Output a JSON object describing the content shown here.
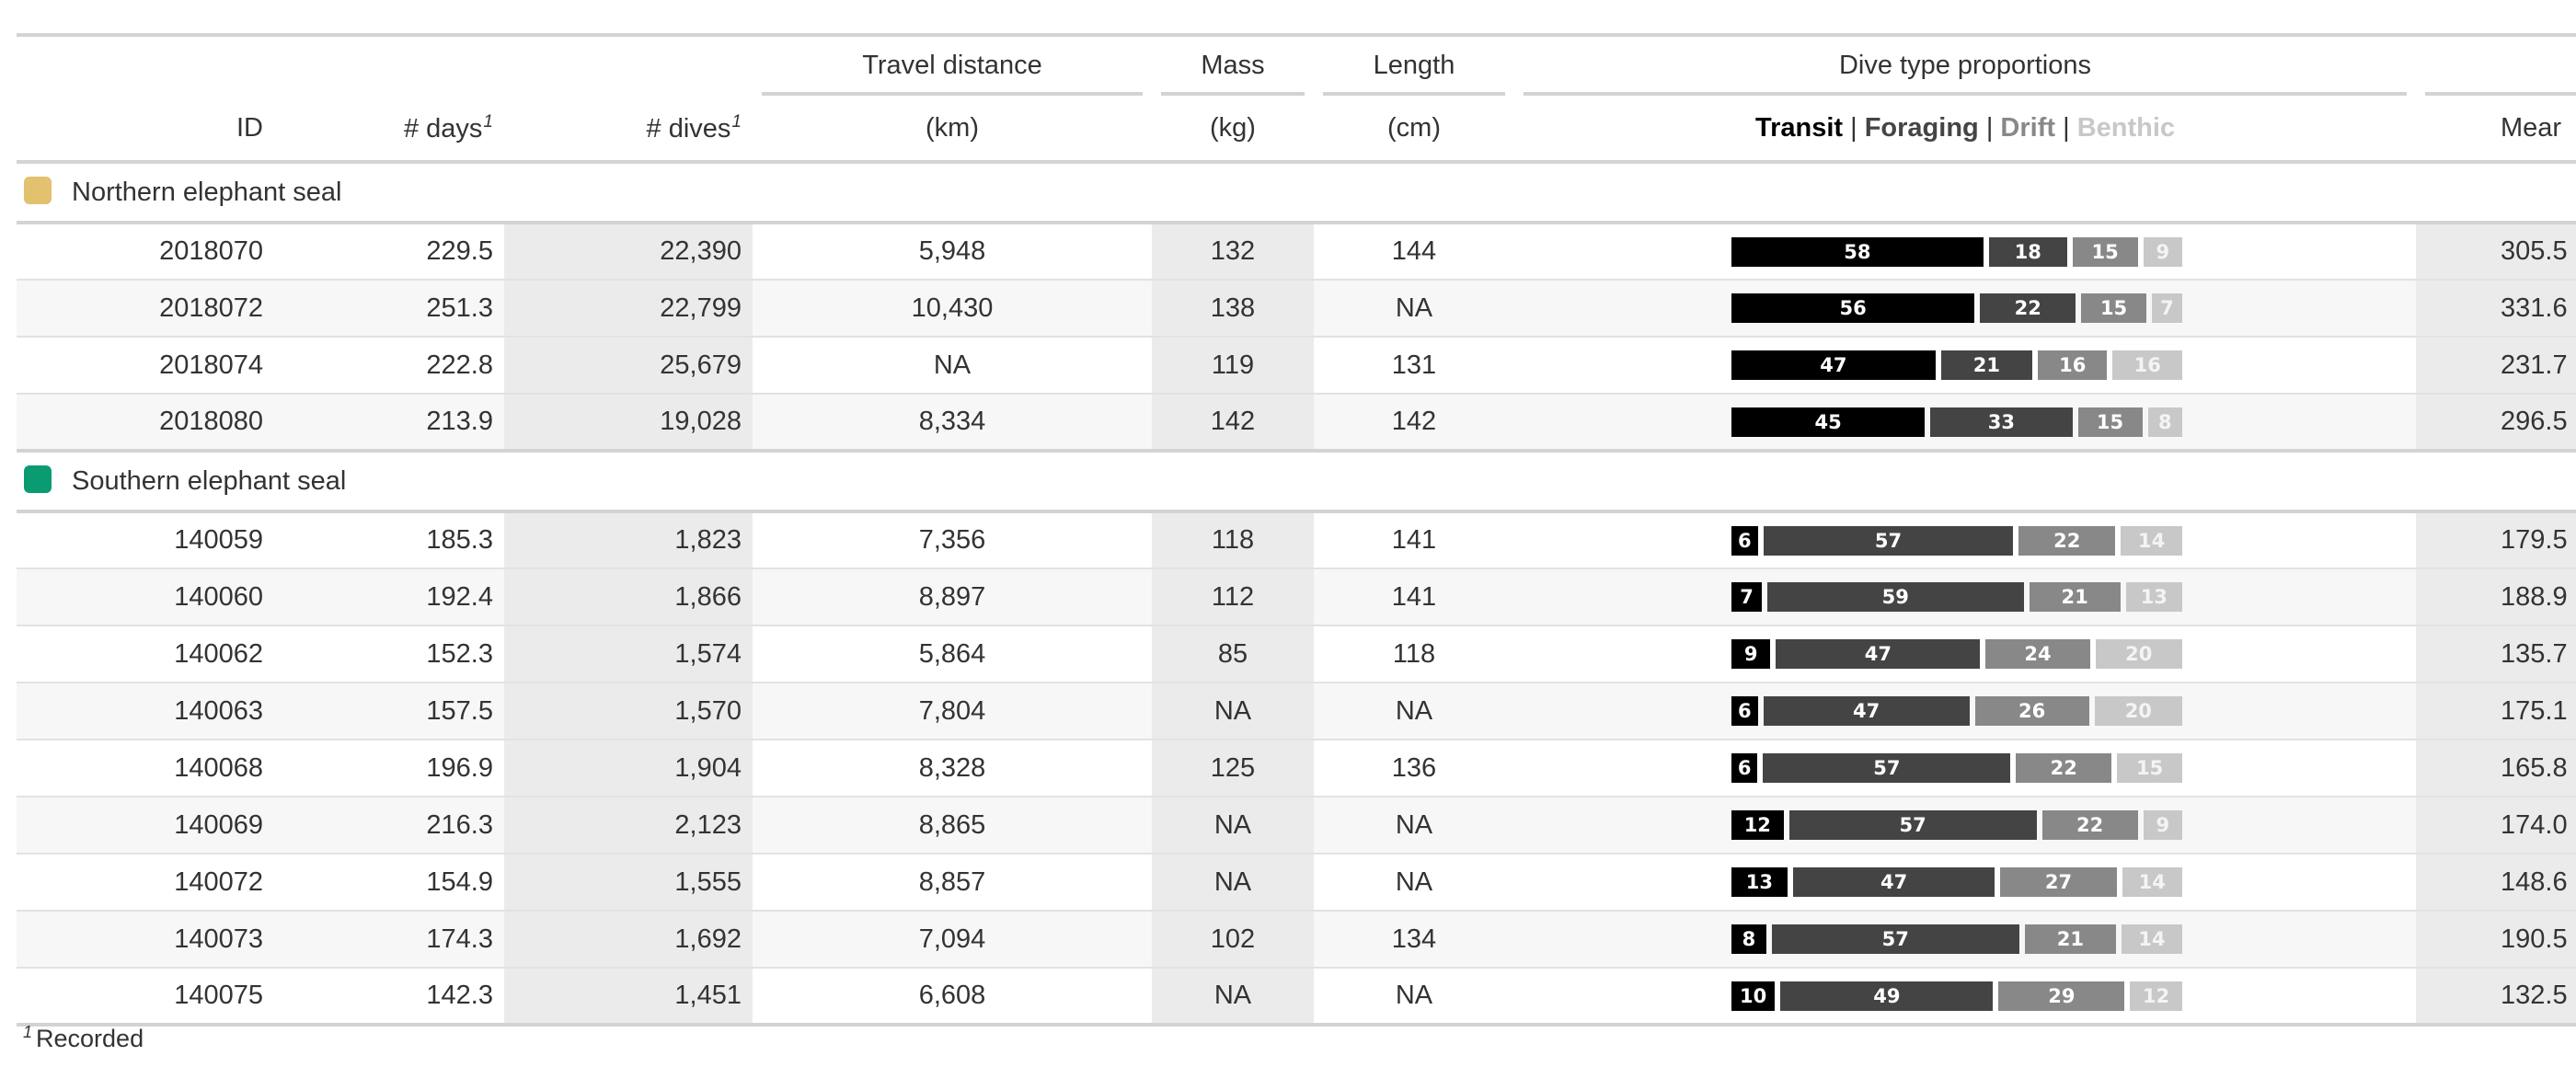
{
  "columns": {
    "id": "ID",
    "days": "# days",
    "dives": "# dives",
    "travel_spanner": "Travel distance",
    "travel_unit": "(km)",
    "mass_spanner": "Mass",
    "mass_unit": "(kg)",
    "length_spanner": "Length",
    "length_unit": "(cm)",
    "dive_spanner": "Dive type proportions",
    "mean_partial": "Mear",
    "footnote_mark": "1"
  },
  "legend": {
    "transit": "Transit",
    "foraging": "Foraging",
    "drift": "Drift",
    "benthic": "Benthic",
    "sep": " | "
  },
  "colors": {
    "transit": "#000000",
    "foraging": "#444444",
    "drift": "#888888",
    "benthic": "#c8c8c8",
    "northern": "#E2C16F",
    "southern": "#0A9B73"
  },
  "groups": [
    {
      "name": "Northern elephant seal",
      "swatch_color": "#E2C16F",
      "rows": [
        {
          "id": "2018070",
          "days": "229.5",
          "dives": "22,390",
          "travel": "5,948",
          "mass": "132",
          "length": "144",
          "props": [
            58,
            18,
            15,
            9
          ],
          "mean": "305.5"
        },
        {
          "id": "2018072",
          "days": "251.3",
          "dives": "22,799",
          "travel": "10,430",
          "mass": "138",
          "length": "NA",
          "props": [
            56,
            22,
            15,
            7
          ],
          "mean": "331.6"
        },
        {
          "id": "2018074",
          "days": "222.8",
          "dives": "25,679",
          "travel": "NA",
          "mass": "119",
          "length": "131",
          "props": [
            47,
            21,
            16,
            16
          ],
          "mean": "231.7"
        },
        {
          "id": "2018080",
          "days": "213.9",
          "dives": "19,028",
          "travel": "8,334",
          "mass": "142",
          "length": "142",
          "props": [
            45,
            33,
            15,
            8
          ],
          "mean": "296.5"
        }
      ]
    },
    {
      "name": "Southern elephant seal",
      "swatch_color": "#0A9B73",
      "rows": [
        {
          "id": "140059",
          "days": "185.3",
          "dives": "1,823",
          "travel": "7,356",
          "mass": "118",
          "length": "141",
          "props": [
            6,
            57,
            22,
            14
          ],
          "mean": "179.5"
        },
        {
          "id": "140060",
          "days": "192.4",
          "dives": "1,866",
          "travel": "8,897",
          "mass": "112",
          "length": "141",
          "props": [
            7,
            59,
            21,
            13
          ],
          "mean": "188.9"
        },
        {
          "id": "140062",
          "days": "152.3",
          "dives": "1,574",
          "travel": "5,864",
          "mass": "85",
          "length": "118",
          "props": [
            9,
            47,
            24,
            20
          ],
          "mean": "135.7"
        },
        {
          "id": "140063",
          "days": "157.5",
          "dives": "1,570",
          "travel": "7,804",
          "mass": "NA",
          "length": "NA",
          "props": [
            6,
            47,
            26,
            20
          ],
          "mean": "175.1"
        },
        {
          "id": "140068",
          "days": "196.9",
          "dives": "1,904",
          "travel": "8,328",
          "mass": "125",
          "length": "136",
          "props": [
            6,
            57,
            22,
            15
          ],
          "mean": "165.8"
        },
        {
          "id": "140069",
          "days": "216.3",
          "dives": "2,123",
          "travel": "8,865",
          "mass": "NA",
          "length": "NA",
          "props": [
            12,
            57,
            22,
            9
          ],
          "mean": "174.0"
        },
        {
          "id": "140072",
          "days": "154.9",
          "dives": "1,555",
          "travel": "8,857",
          "mass": "NA",
          "length": "NA",
          "props": [
            13,
            47,
            27,
            14
          ],
          "mean": "148.6"
        },
        {
          "id": "140073",
          "days": "174.3",
          "dives": "1,692",
          "travel": "7,094",
          "mass": "102",
          "length": "134",
          "props": [
            8,
            57,
            21,
            14
          ],
          "mean": "190.5"
        },
        {
          "id": "140075",
          "days": "142.3",
          "dives": "1,451",
          "travel": "6,608",
          "mass": "NA",
          "length": "NA",
          "props": [
            10,
            49,
            29,
            12
          ],
          "mean": "132.5"
        }
      ]
    }
  ],
  "footnote": {
    "mark": "1",
    "text": "Recorded"
  }
}
